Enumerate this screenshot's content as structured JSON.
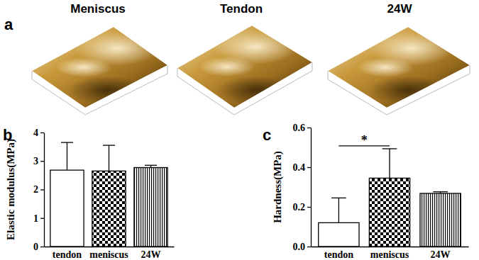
{
  "panel_labels": [
    "a",
    "b",
    "c"
  ],
  "surface_titles": [
    "Meniscus",
    "Tendon",
    "24W"
  ],
  "chart_data": [
    {
      "type": "bar",
      "y_label": "Elastic modulus(MPa)",
      "categories": [
        "tendon",
        "meniscus",
        "24W"
      ],
      "values": [
        2.68,
        2.65,
        2.77
      ],
      "errors": [
        0.97,
        0.9,
        0.08
      ],
      "colors": [
        "#ffffff",
        "#000000",
        "#000000"
      ],
      "ylim": [
        0,
        4
      ],
      "yticks": [
        0,
        1,
        2,
        3,
        4
      ],
      "grid": false
    },
    {
      "type": "bar",
      "y_label": "Hardness(MPa)",
      "categories": [
        "tendon",
        "meniscus",
        "24W"
      ],
      "values": [
        0.12,
        0.345,
        0.268
      ],
      "errors": [
        0.125,
        0.148,
        0.008
      ],
      "colors": [
        "#ffffff",
        "#000000",
        "#000000"
      ],
      "ylim": [
        0,
        0.6
      ],
      "yticks": [
        {
          "value": 0,
          "label": "0.0"
        },
        0.2,
        0.4,
        0.6
      ],
      "grid": false,
      "annotations": [
        {
          "text": "*",
          "categories": [
            "tendon",
            "meniscus"
          ]
        }
      ]
    }
  ]
}
